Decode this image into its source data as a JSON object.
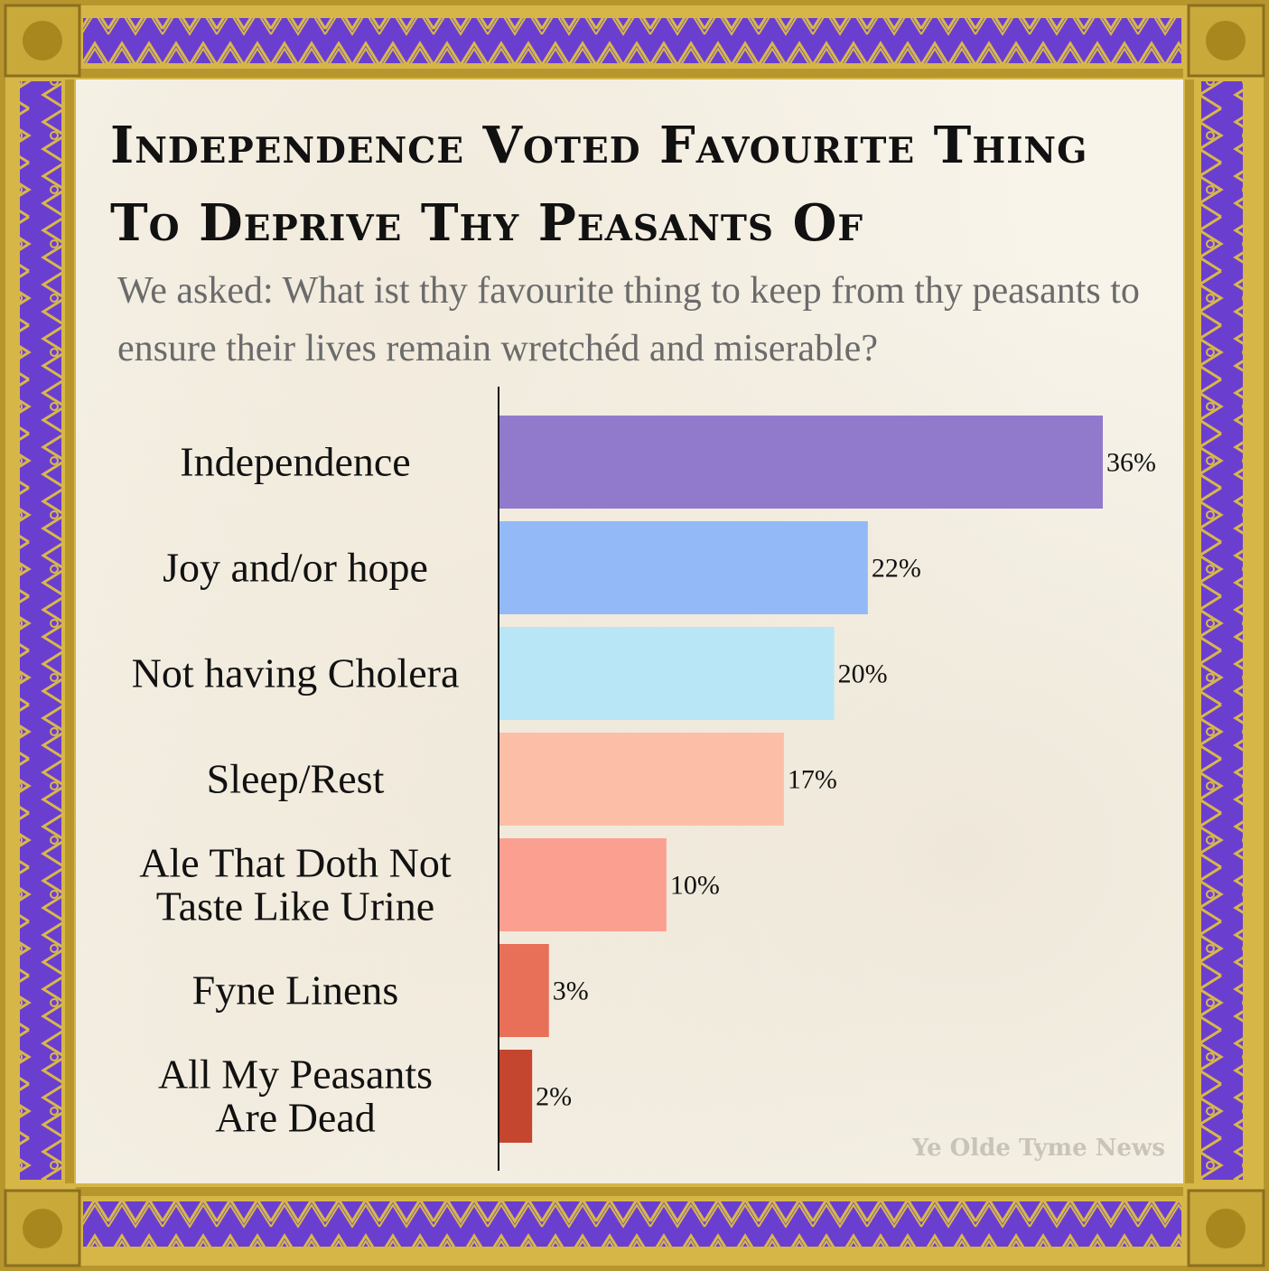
{
  "chart_data": {
    "type": "bar",
    "orientation": "horizontal",
    "title": "Independence Voted Favourite Thing To Deprive Thy Peasants Of",
    "subtitle": "We asked: What ist thy favourite thing to keep from thy peasants to ensure their lives remain wretchéd and miserable?",
    "categories": [
      "Independence",
      "Joy and/or hope",
      "Not having Cholera",
      "Sleep/Rest",
      "Ale That Doth Not Taste Like Urine",
      "Fyne Linens",
      "All My Peasants Are Dead"
    ],
    "category_lines": [
      [
        "Independence"
      ],
      [
        "Joy and/or hope"
      ],
      [
        "Not having Cholera"
      ],
      [
        "Sleep/Rest"
      ],
      [
        "Ale That Doth Not",
        "Taste Like Urine"
      ],
      [
        "Fyne Linens"
      ],
      [
        "All My Peasants",
        "Are Dead"
      ]
    ],
    "values": [
      36,
      22,
      20,
      17,
      10,
      3,
      2
    ],
    "value_labels": [
      "36%",
      "22%",
      "20%",
      "17%",
      "10%",
      "3%",
      "2%"
    ],
    "colors": [
      "#9179cc",
      "#93b9f7",
      "#b9e6f7",
      "#fcbea6",
      "#fba090",
      "#e87059",
      "#c4462e"
    ],
    "xlim": [
      0,
      36
    ],
    "grid": false,
    "legend": "none"
  },
  "watermark": "Ye Olde Tyme News",
  "frame_colors": {
    "gold": "#c9a93a",
    "purple": "#6a3fcf",
    "parchment": "#f8f4ea"
  }
}
